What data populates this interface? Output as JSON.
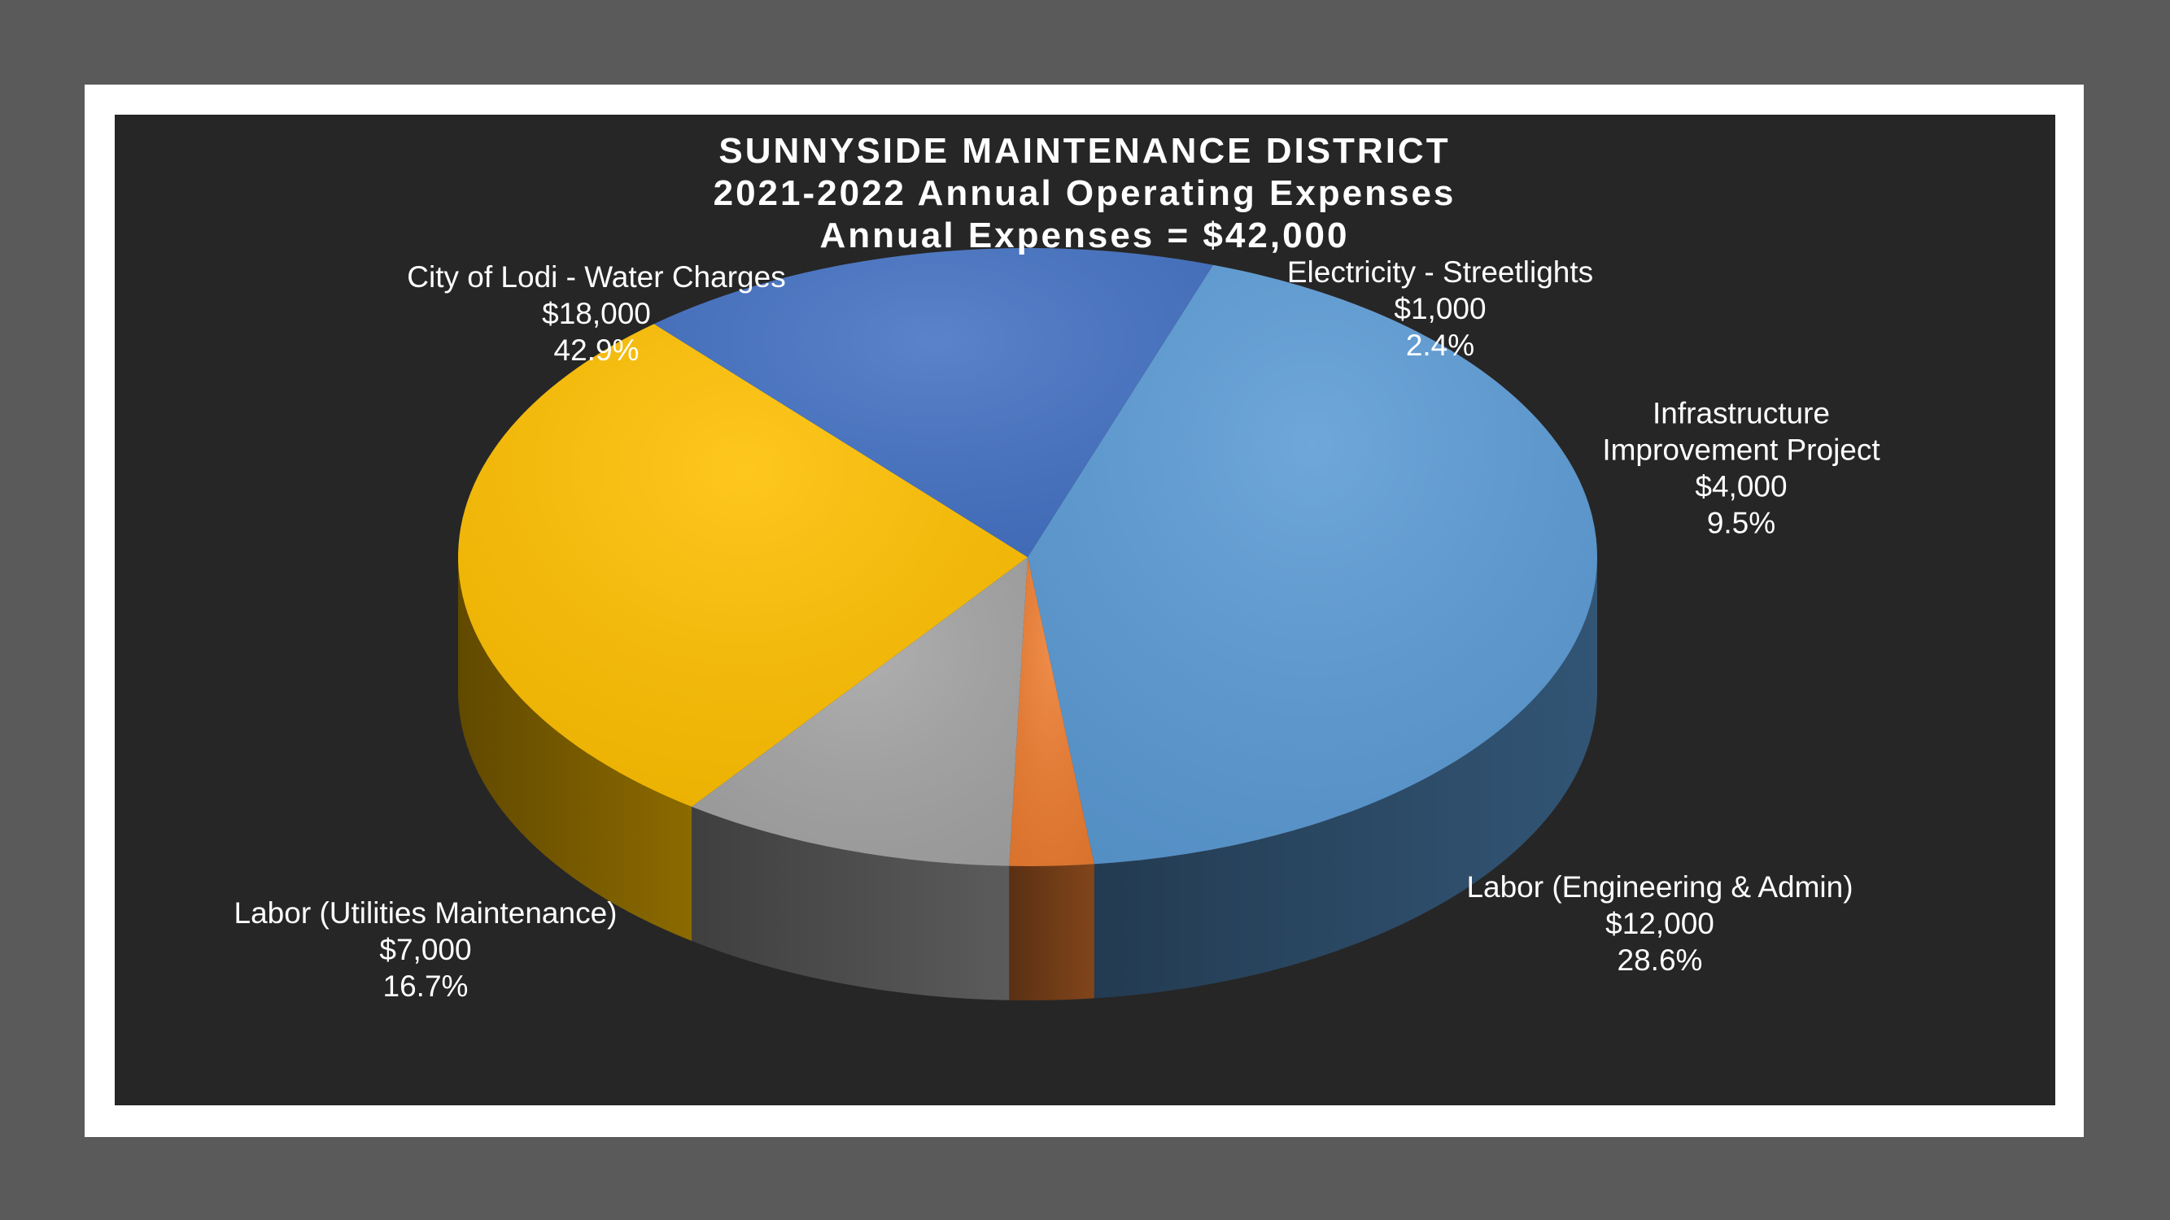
{
  "chart_data": {
    "type": "pie",
    "title": "SUNNYSIDE MAINTENANCE DISTRICT",
    "subtitle": "2021-2022 Annual Operating Expenses",
    "subtitle2": "Annual Expenses = $42,000",
    "total": 42000,
    "three_d": true,
    "slices": [
      {
        "name": "City of Lodi - Water Charges",
        "value": 18000,
        "value_label": "$18,000",
        "percent_label": "42.9%",
        "color": "#5b9bd5"
      },
      {
        "name": "Electricity - Streetlights",
        "value": 1000,
        "value_label": "$1,000",
        "percent_label": "2.4%",
        "color": "#ed7d31"
      },
      {
        "name": "Infrastructure Improvement Project",
        "name_lines": [
          "Infrastructure",
          "Improvement Project"
        ],
        "value": 4000,
        "value_label": "$4,000",
        "percent_label": "9.5%",
        "color": "#a5a5a5"
      },
      {
        "name": "Labor (Engineering & Admin)",
        "value": 12000,
        "value_label": "$12,000",
        "percent_label": "28.6%",
        "color": "#ffc000"
      },
      {
        "name": "Labor (Utilities Maintenance)",
        "value": 7000,
        "value_label": "$7,000",
        "percent_label": "16.7%",
        "color": "#4472c4"
      }
    ]
  }
}
